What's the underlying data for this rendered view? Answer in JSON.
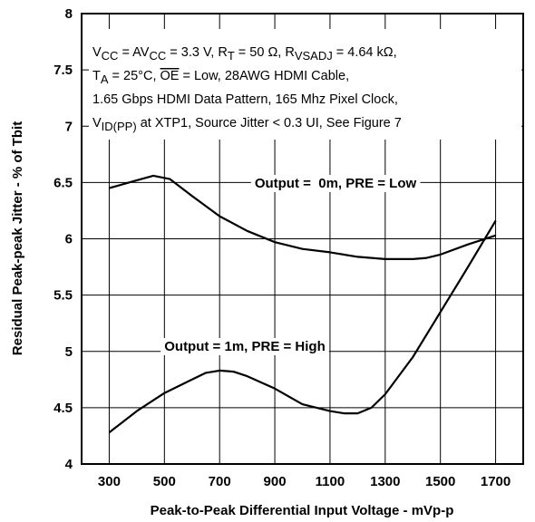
{
  "chart_data": {
    "type": "line",
    "x_label": "Peak-to-Peak Differential Input Voltage - mVp-p",
    "y_label": "Residual Peak-peak Jitter - % of Tbit",
    "xlim": [
      200,
      1800
    ],
    "ylim": [
      4,
      8
    ],
    "xticks": [
      300,
      500,
      700,
      900,
      1100,
      1300,
      1500,
      1700
    ],
    "yticks": [
      4,
      4.5,
      5,
      5.5,
      6,
      6.5,
      7,
      7.5,
      8
    ],
    "grid": true,
    "annotation": [
      [
        {
          "text": "V",
          "style": "normal"
        },
        {
          "text": "CC",
          "style": "sub"
        },
        {
          "text": " = AV",
          "style": "normal"
        },
        {
          "text": "CC",
          "style": "sub"
        },
        {
          "text": " = 3.3 V, R",
          "style": "normal"
        },
        {
          "text": "T",
          "style": "sub"
        },
        {
          "text": " = 50 Ω, R",
          "style": "normal"
        },
        {
          "text": "VSADJ",
          "style": "sub"
        },
        {
          "text": " = 4.64 kΩ,",
          "style": "normal"
        }
      ],
      [
        {
          "text": "T",
          "style": "normal"
        },
        {
          "text": "A",
          "style": "sub"
        },
        {
          "text": " = 25°C, ",
          "style": "normal"
        },
        {
          "text": "OE",
          "style": "overline"
        },
        {
          "text": " = Low, 28AWG HDMI Cable,",
          "style": "normal"
        }
      ],
      [
        {
          "text": "1.65 Gbps HDMI Data Pattern, 165 Mhz Pixel Clock,",
          "style": "normal"
        }
      ],
      [
        {
          "text": "V",
          "style": "normal"
        },
        {
          "text": "ID(PP)",
          "style": "sub"
        },
        {
          "text": " at XTP1, Source Jitter < 0.3 UI, See Figure 7",
          "style": "normal"
        }
      ]
    ],
    "series": [
      {
        "name": "Output =  0m, PRE = Low",
        "color": "#000000",
        "x": [
          300,
          400,
          460,
          520,
          600,
          700,
          800,
          900,
          1000,
          1100,
          1200,
          1300,
          1400,
          1450,
          1500,
          1600,
          1700
        ],
        "values": [
          6.45,
          6.52,
          6.56,
          6.53,
          6.38,
          6.2,
          6.07,
          5.97,
          5.91,
          5.88,
          5.84,
          5.82,
          5.82,
          5.83,
          5.86,
          5.95,
          6.03
        ]
      },
      {
        "name": "Output = 1m, PRE = High",
        "color": "#000000",
        "x": [
          300,
          400,
          500,
          600,
          650,
          700,
          750,
          800,
          900,
          1000,
          1100,
          1150,
          1200,
          1250,
          1300,
          1400,
          1500,
          1600,
          1700
        ],
        "values": [
          4.28,
          4.47,
          4.63,
          4.75,
          4.81,
          4.83,
          4.82,
          4.78,
          4.67,
          4.53,
          4.47,
          4.45,
          4.45,
          4.5,
          4.62,
          4.95,
          5.35,
          5.75,
          6.16
        ]
      }
    ]
  }
}
